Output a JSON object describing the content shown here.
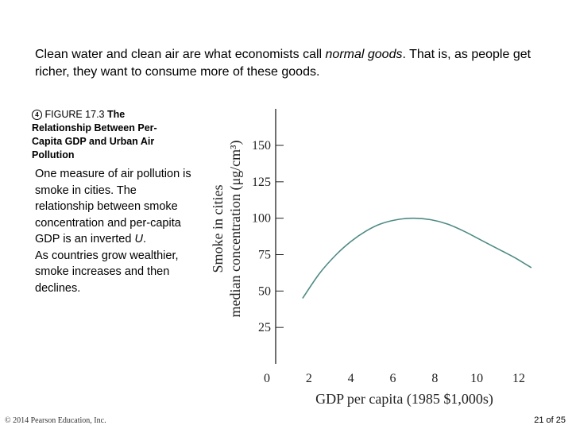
{
  "intro": {
    "part1": "Clean water and clean air are what economists call ",
    "emph": "normal goods",
    "part2": ". That is, as people get richer, they want to consume more of these goods."
  },
  "figure": {
    "icon_glyph": "4",
    "label": "FIGURE 17.3",
    "title": "The Relationship Between Per-Capita GDP and Urban Air Pollution"
  },
  "description": {
    "para1_part1": "One measure of air pollution is smoke in cities. The relationship between smoke concentration and per-capita GDP is an inverted ",
    "para1_emph": "U",
    "para1_part2": ".",
    "para2": "As countries grow wealthier, smoke increases and then declines."
  },
  "chart_data": {
    "type": "line",
    "title": "",
    "xlabel": "GDP per capita (1985 $1,000s)",
    "ylabel_line1": "Smoke in cities",
    "ylabel_line2": "median concentration (μg/cm³)",
    "xlim": [
      0,
      13.5
    ],
    "ylim": [
      0,
      175
    ],
    "xticks": [
      0,
      2,
      4,
      6,
      8,
      10,
      12
    ],
    "yticks": [
      25,
      50,
      75,
      100,
      125,
      150
    ],
    "series": [
      {
        "name": "Smoke",
        "x": [
          1.7,
          2.5,
          3.3,
          4.0,
          4.7,
          5.4,
          6.2,
          7.0,
          7.8,
          8.6,
          9.4,
          10.2,
          11.0,
          11.8,
          12.6
        ],
        "y": [
          45,
          62,
          75,
          84,
          91,
          96,
          99,
          100,
          99,
          96,
          91,
          85,
          79,
          73,
          66
        ]
      }
    ],
    "grid": false
  },
  "footer": {
    "copyright": "© 2014 Pearson Education, Inc.",
    "page": "21 of 25"
  }
}
